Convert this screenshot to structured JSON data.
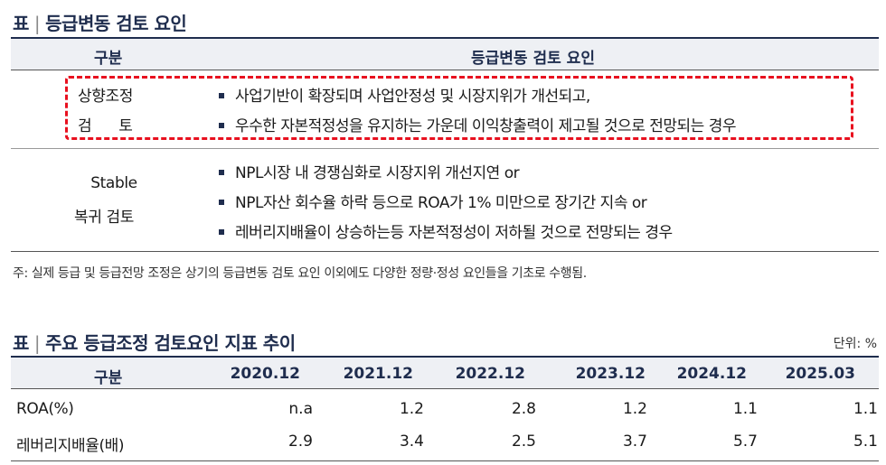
{
  "table1": {
    "title_prefix": "표",
    "title": "등급변동 검토 요인",
    "col_headers": [
      "구분",
      "등급변동 검토 요인"
    ],
    "rows": [
      {
        "label_line1": "상향조정",
        "label_line2": "검      토",
        "bullets": [
          "사업기반이 확장되며 사업안정성 및 시장지위가 개선되고,",
          "우수한 자본적정성을 유지하는 가운데 이익창출력이 제고될 것으로 전망되는 경우"
        ]
      },
      {
        "label_line1": "Stable",
        "label_line2": "복귀 검토",
        "bullets": [
          "NPL시장 내 경쟁심화로 시장지위 개선지연 or",
          "NPL자산 회수율 하락 등으로 ROA가 1% 미만으로 장기간 지속 or",
          "레버리지배율이 상승하는등 자본적정성이 저하될 것으로 전망되는 경우"
        ]
      }
    ],
    "note": "주: 실제 등급 및 등급전망 조정은 상기의 등급변동 검토 요인 이외에도 다양한 정량·정성 요인들을 기초로 수행됨."
  },
  "table2": {
    "title_prefix": "표",
    "title": "주요 등급조정 검토요인 지표 추이",
    "unit": "단위: %",
    "col_headers": [
      "구분",
      "2020.12",
      "2021.12",
      "2022.12",
      "2023.12",
      "2024.12",
      "2025.03"
    ],
    "rows": [
      {
        "label": "ROA(%)",
        "values": [
          "n.a",
          "1.2",
          "2.8",
          "1.2",
          "1.1",
          "1.1"
        ]
      },
      {
        "label": "레버리지배율(배)",
        "values": [
          "2.9",
          "3.4",
          "2.5",
          "3.7",
          "5.7",
          "5.1"
        ]
      }
    ]
  }
}
